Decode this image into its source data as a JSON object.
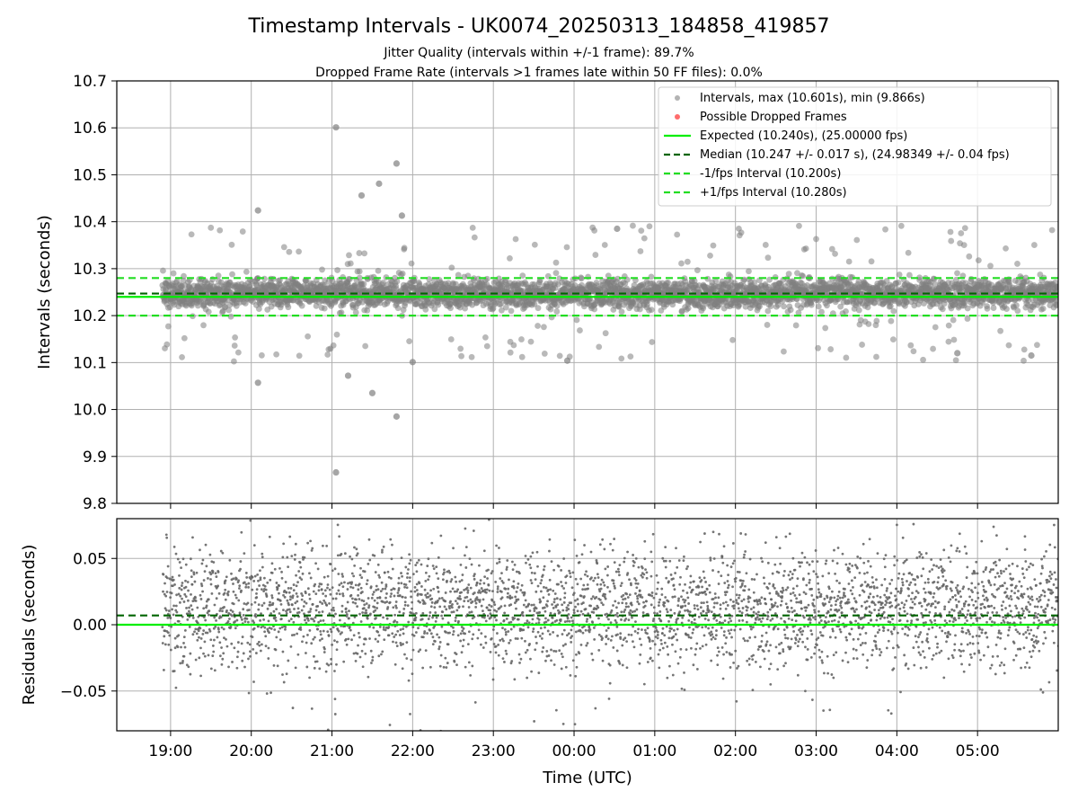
{
  "header": {
    "title": "Timestamp Intervals - UK0074_20250313_184858_419857",
    "subtitle_jitter": "Jitter Quality (intervals within +/-1 frame): 89.7%",
    "subtitle_dropped": "Dropped Frame Rate (intervals >1 frames late within 50 FF files): 0.0%"
  },
  "colors": {
    "points": "#808080",
    "dropped": "#ff3b3b",
    "expected": "#00ee00",
    "median": "#006400",
    "fps_band": "#22dd22",
    "grid": "#b0b0b0"
  },
  "chart_data": [
    {
      "type": "scatter",
      "panel": "intervals",
      "ylabel": "Intervals (seconds)",
      "ylim": [
        9.8,
        10.7
      ],
      "yticks": [
        9.8,
        9.9,
        10.0,
        10.1,
        10.2,
        10.3,
        10.4,
        10.5,
        10.6,
        10.7
      ],
      "ytick_labels": [
        "9.8",
        "9.9",
        "10.0",
        "10.1",
        "10.2",
        "10.3",
        "10.4",
        "10.5",
        "10.6",
        "10.7"
      ],
      "xlim": [
        "18:20",
        "06:00"
      ],
      "grid": true,
      "legend_position": "top-right",
      "series": [
        {
          "name": "Intervals, max (10.601s), min (9.866s)",
          "kind": "scatter",
          "max": 10.601,
          "min": 9.866,
          "median": 10.247,
          "spread": 0.017,
          "start": "18:54",
          "end": "06:00"
        },
        {
          "name": "Possible Dropped Frames",
          "kind": "scatter",
          "values": []
        },
        {
          "name": "Expected (10.240s), (25.00000 fps)",
          "kind": "hline",
          "y": 10.24
        },
        {
          "name": "Median (10.247 +/- 0.017 s), (24.98349 +/- 0.04 fps)",
          "kind": "hline",
          "y": 10.247
        },
        {
          "name": "-1/fps Interval (10.200s)",
          "kind": "hline",
          "y": 10.2
        },
        {
          "name": "+1/fps Interval (10.280s)",
          "kind": "hline",
          "y": 10.28
        }
      ],
      "highlights": [
        {
          "time": "21:03",
          "y": 10.601
        },
        {
          "time": "21:03",
          "y": 9.866
        },
        {
          "time": "21:48",
          "y": 10.524
        },
        {
          "time": "21:48",
          "y": 9.985
        },
        {
          "time": "21:52",
          "y": 10.413
        },
        {
          "time": "20:05",
          "y": 10.424
        },
        {
          "time": "20:05",
          "y": 10.057
        },
        {
          "time": "21:22",
          "y": 10.456
        },
        {
          "time": "21:35",
          "y": 10.481
        },
        {
          "time": "21:30",
          "y": 10.035
        },
        {
          "time": "21:12",
          "y": 10.072
        },
        {
          "time": "23:55",
          "y": 10.104
        },
        {
          "time": "22:00",
          "y": 10.101
        },
        {
          "time": "00:32",
          "y": 10.385
        },
        {
          "time": "04:45",
          "y": 10.12
        },
        {
          "time": "05:40",
          "y": 10.115
        }
      ]
    },
    {
      "type": "scatter",
      "panel": "residuals",
      "ylabel": "Residuals (seconds)",
      "xlabel": "Time (UTC)",
      "ylim": [
        -0.08,
        0.08
      ],
      "yticks": [
        -0.05,
        0.0,
        0.05
      ],
      "ytick_labels": [
        "−0.05",
        "0.00",
        "0.05"
      ],
      "xticks": [
        "19:00",
        "20:00",
        "21:00",
        "22:00",
        "23:00",
        "00:00",
        "01:00",
        "02:00",
        "03:00",
        "04:00",
        "05:00"
      ],
      "grid": true,
      "series": [
        {
          "kind": "scatter",
          "mean": 0.012,
          "spread": 0.022
        },
        {
          "kind": "hline",
          "y": 0.0
        },
        {
          "kind": "hline",
          "y": 0.007
        }
      ]
    }
  ]
}
